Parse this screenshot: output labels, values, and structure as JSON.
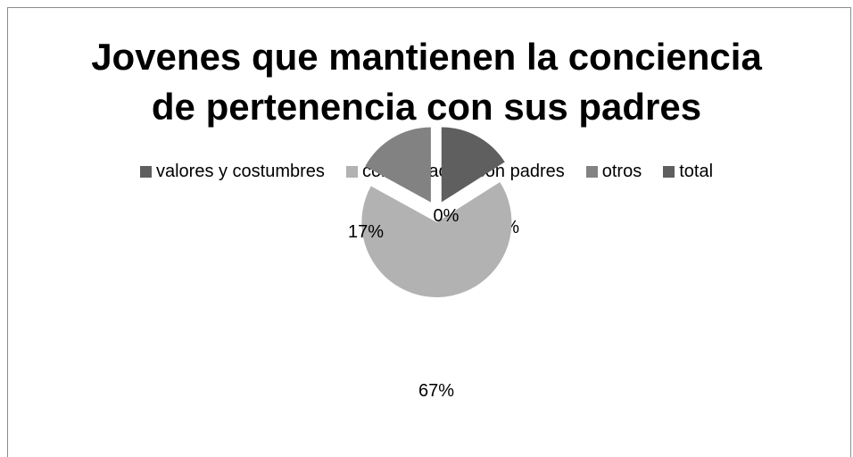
{
  "chart_data": {
    "type": "pie",
    "title_lines": [
      "Jovenes que mantienen la conciencia",
      "de pertenencia con sus padres"
    ],
    "legend_position": "top",
    "exploded": true,
    "slices": [
      {
        "name": "total",
        "value": 16,
        "label": "16%",
        "color": "#5f5f5f"
      },
      {
        "name": "comunicación con padres",
        "value": 67,
        "label": "67%",
        "color": "#b2b2b2"
      },
      {
        "name": "otros",
        "value": 17,
        "label": "17%",
        "color": "#828282"
      },
      {
        "name": "valores y costumbres",
        "value": 0,
        "label": "0%",
        "color": "#5f5f5f"
      }
    ],
    "legend": [
      {
        "name": "valores y costumbres",
        "color": "#5f5f5f"
      },
      {
        "name": "comunicación con padres",
        "color": "#b2b2b2"
      },
      {
        "name": "otros",
        "color": "#828282"
      },
      {
        "name": "total",
        "color": "#5f5f5f"
      }
    ]
  }
}
